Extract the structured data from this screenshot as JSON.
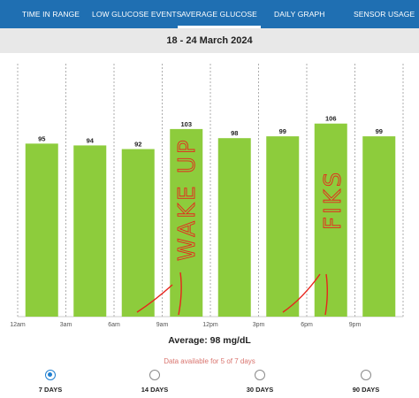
{
  "tabs": [
    {
      "label": "TIME IN RANGE",
      "active": false
    },
    {
      "label": "LOW GLUCOSE EVENTS",
      "active": false
    },
    {
      "label": "AVERAGE GLUCOSE",
      "active": true
    },
    {
      "label": "DAILY GRAPH",
      "active": false
    },
    {
      "label": "SENSOR USAGE",
      "active": false
    }
  ],
  "date_range": "18 - 24 March 2024",
  "summary": {
    "average": "Average: 98 mg/dL",
    "availability": "Data available for 5 of 7 days"
  },
  "ranges": [
    {
      "label": "7 DAYS",
      "selected": true
    },
    {
      "label": "14 DAYS",
      "selected": false
    },
    {
      "label": "30 DAYS",
      "selected": false
    },
    {
      "label": "90 DAYS",
      "selected": false
    }
  ],
  "colors": {
    "header": "#1f6fb2",
    "bar": "#8dcc3c",
    "annotation": "#e8231c"
  },
  "annotations": [
    "WAKE UP",
    "FIKS"
  ],
  "chart_data": {
    "type": "bar",
    "categories": [
      "12am",
      "3am",
      "6am",
      "9am",
      "12pm",
      "3pm",
      "6pm",
      "9pm"
    ],
    "values": [
      95,
      94,
      92,
      103,
      98,
      99,
      106,
      99
    ],
    "ylim": [
      0,
      135
    ],
    "grid": "vertical dashed",
    "xlabel": "",
    "ylabel": ""
  }
}
